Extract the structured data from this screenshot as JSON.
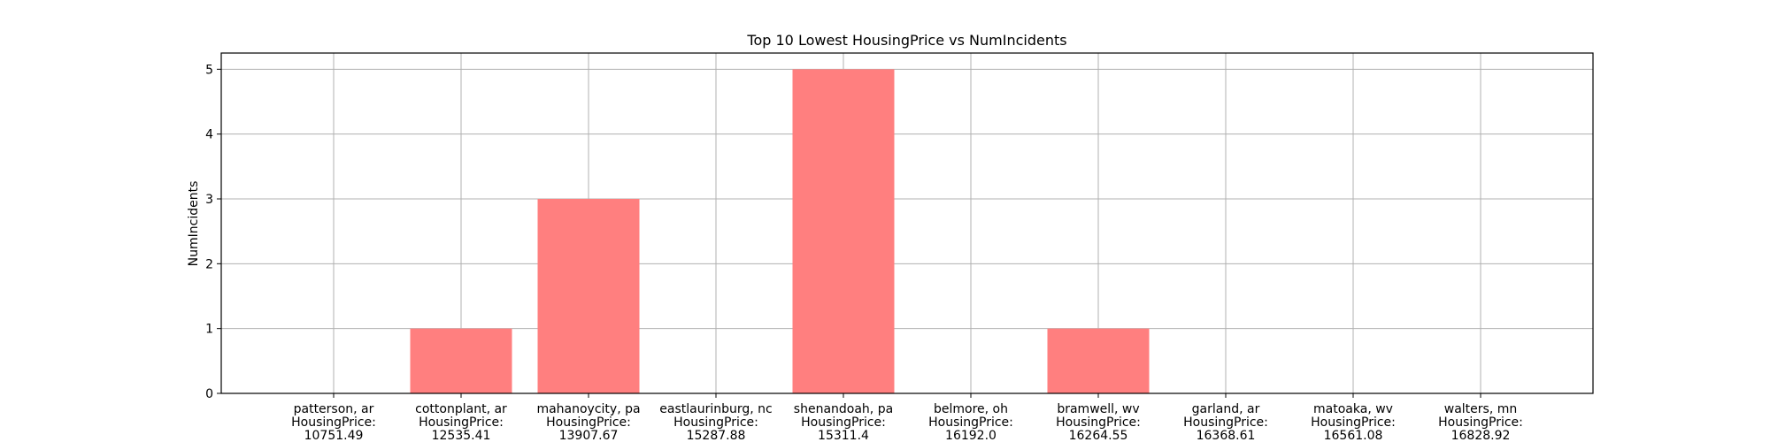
{
  "chart_data": {
    "type": "bar",
    "title": "Top 10 Lowest HousingPrice vs NumIncidents",
    "xlabel": "",
    "ylabel": "NumIncidents",
    "ylim": [
      0,
      5.25
    ],
    "yticks": [
      0,
      1,
      2,
      3,
      4,
      5
    ],
    "grid": true,
    "bar_color": "#ff7f7f",
    "categories": [
      "patterson, ar\nHousingPrice:\n10751.49",
      "cottonplant, ar\nHousingPrice:\n12535.41",
      "mahanoycity, pa\nHousingPrice:\n13907.67",
      "eastlaurinburg, nc\nHousingPrice:\n15287.88",
      "shenandoah, pa\nHousingPrice:\n15311.4",
      "belmore, oh\nHousingPrice:\n16192.0",
      "bramwell, wv\nHousingPrice:\n16264.55",
      "garland, ar\nHousingPrice:\n16368.61",
      "matoaka, wv\nHousingPrice:\n16561.08",
      "walters, mn\nHousingPrice:\n16828.92"
    ],
    "values": [
      0,
      1,
      3,
      0,
      5,
      0,
      1,
      0,
      0,
      0
    ]
  }
}
